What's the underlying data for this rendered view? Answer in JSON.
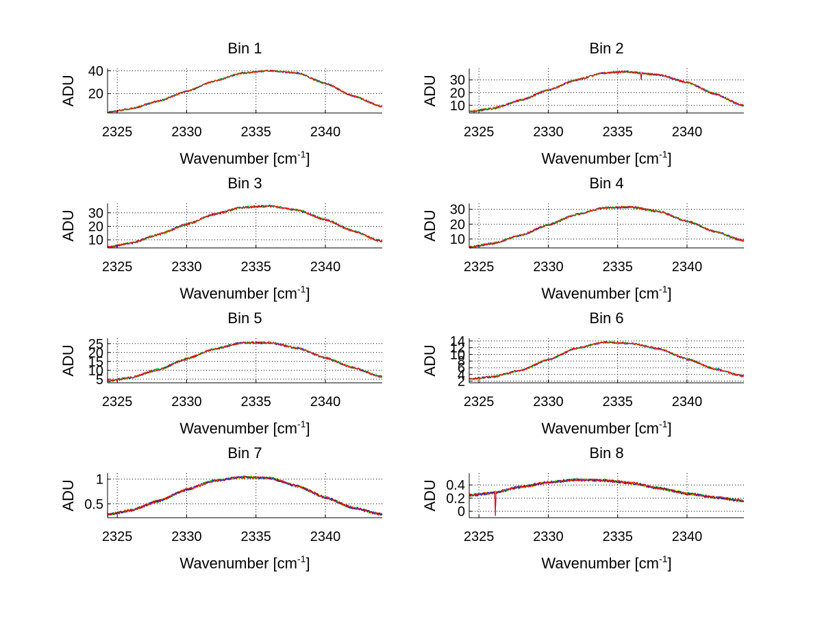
{
  "figure": {
    "background": "#ffffff",
    "panel_colors": [
      "#ff0000",
      "#0000cc",
      "#00cc00",
      "#00cccc",
      "#ffcc00"
    ]
  },
  "chart_data": [
    {
      "type": "line",
      "title": "Bin 1",
      "xlabel": "Wavenumber [cm",
      "xlabel_sup": "-1",
      "xlabel_end": "]",
      "ylabel": "ADU",
      "xlim": [
        2324.3,
        2344.1
      ],
      "ylim": [
        3,
        42
      ],
      "xticks": [
        2325,
        2330,
        2335,
        2340
      ],
      "yticks": [
        20,
        40
      ],
      "grid": true,
      "curve_points": [
        [
          2324.3,
          3.5
        ],
        [
          2326,
          6.8
        ],
        [
          2328,
          13.5
        ],
        [
          2330,
          22
        ],
        [
          2332,
          31
        ],
        [
          2334,
          38
        ],
        [
          2336,
          40
        ],
        [
          2338,
          38
        ],
        [
          2340,
          29
        ],
        [
          2342,
          18
        ],
        [
          2344,
          9
        ]
      ],
      "noise": 0.8
    },
    {
      "type": "line",
      "title": "Bin 2",
      "xlabel": "Wavenumber [cm",
      "xlabel_sup": "-1",
      "xlabel_end": "]",
      "ylabel": "ADU",
      "xlim": [
        2324.3,
        2344.1
      ],
      "ylim": [
        4,
        39
      ],
      "xticks": [
        2325,
        2330,
        2335,
        2340
      ],
      "yticks": [
        10,
        20,
        30
      ],
      "grid": true,
      "curve_points": [
        [
          2324.3,
          5
        ],
        [
          2326,
          7.5
        ],
        [
          2328,
          14
        ],
        [
          2330,
          22
        ],
        [
          2332,
          30
        ],
        [
          2334,
          35.5
        ],
        [
          2335.5,
          36.5
        ],
        [
          2338,
          34
        ],
        [
          2340,
          28
        ],
        [
          2342,
          19
        ],
        [
          2344,
          10
        ]
      ],
      "dips": [
        [
          2336.7,
          30
        ]
      ],
      "noise": 0.8
    },
    {
      "type": "line",
      "title": "Bin 3",
      "xlabel": "Wavenumber [cm",
      "xlabel_sup": "-1",
      "xlabel_end": "]",
      "ylabel": "ADU",
      "xlim": [
        2324.3,
        2344.1
      ],
      "ylim": [
        4,
        37
      ],
      "xticks": [
        2325,
        2330,
        2335,
        2340
      ],
      "yticks": [
        10,
        20,
        30
      ],
      "grid": true,
      "curve_points": [
        [
          2324.3,
          4.5
        ],
        [
          2326,
          7.5
        ],
        [
          2328,
          14
        ],
        [
          2330,
          21.5
        ],
        [
          2332,
          29
        ],
        [
          2334,
          34
        ],
        [
          2336,
          35
        ],
        [
          2338,
          32
        ],
        [
          2340,
          25
        ],
        [
          2342,
          16.5
        ],
        [
          2344,
          9
        ]
      ],
      "noise": 0.8
    },
    {
      "type": "line",
      "title": "Bin 4",
      "xlabel": "Wavenumber [cm",
      "xlabel_sup": "-1",
      "xlabel_end": "]",
      "ylabel": "ADU",
      "xlim": [
        2324.3,
        2344.1
      ],
      "ylim": [
        4,
        34
      ],
      "xticks": [
        2325,
        2330,
        2335,
        2340
      ],
      "yticks": [
        10,
        20,
        30
      ],
      "grid": true,
      "curve_points": [
        [
          2324.3,
          4.5
        ],
        [
          2326,
          7
        ],
        [
          2328,
          12.5
        ],
        [
          2330,
          19.5
        ],
        [
          2332,
          26.5
        ],
        [
          2334,
          31
        ],
        [
          2336,
          31.5
        ],
        [
          2338,
          28.5
        ],
        [
          2340,
          22
        ],
        [
          2342,
          15
        ],
        [
          2344,
          9
        ]
      ],
      "noise": 0.7
    },
    {
      "type": "line",
      "title": "Bin 5",
      "xlabel": "Wavenumber [cm",
      "xlabel_sup": "-1",
      "xlabel_end": "]",
      "ylabel": "ADU",
      "xlim": [
        2324.3,
        2344.1
      ],
      "ylim": [
        3,
        28
      ],
      "xticks": [
        2325,
        2330,
        2335,
        2340
      ],
      "yticks": [
        5,
        10,
        15,
        20,
        25
      ],
      "ytick_labels": [
        "5",
        "10",
        "15",
        "20",
        "25"
      ],
      "grid": true,
      "curve_points": [
        [
          2324.3,
          4
        ],
        [
          2326,
          6
        ],
        [
          2328,
          10.5
        ],
        [
          2330,
          16.5
        ],
        [
          2332,
          22
        ],
        [
          2334,
          25.5
        ],
        [
          2336,
          25.5
        ],
        [
          2338,
          22.5
        ],
        [
          2340,
          17
        ],
        [
          2342,
          11.5
        ],
        [
          2344,
          6.5
        ]
      ],
      "noise": 0.6
    },
    {
      "type": "line",
      "title": "Bin 6",
      "xlabel": "Wavenumber [cm",
      "xlabel_sup": "-1",
      "xlabel_end": "]",
      "ylabel": "ADU",
      "xlim": [
        2324.3,
        2344.1
      ],
      "ylim": [
        1.5,
        14.8
      ],
      "xticks": [
        2325,
        2330,
        2335,
        2340
      ],
      "yticks": [
        2,
        4,
        6,
        8,
        10,
        12,
        14
      ],
      "ytick_labels": [
        "2",
        "4",
        "6",
        "8",
        "10",
        "12",
        "14"
      ],
      "grid": true,
      "curve_points": [
        [
          2324.3,
          2.6
        ],
        [
          2326,
          3.3
        ],
        [
          2328,
          5.2
        ],
        [
          2330,
          8.4
        ],
        [
          2332,
          11.8
        ],
        [
          2334,
          13.6
        ],
        [
          2336,
          13.3
        ],
        [
          2338,
          11.6
        ],
        [
          2340,
          8.6
        ],
        [
          2342,
          5.6
        ],
        [
          2344,
          3.6
        ]
      ],
      "noise": 0.3
    },
    {
      "type": "line",
      "title": "Bin 7",
      "xlabel": "Wavenumber [cm",
      "xlabel_sup": "-1",
      "xlabel_end": "]",
      "ylabel": "ADU",
      "xlim": [
        2324.3,
        2344.1
      ],
      "ylim": [
        0.22,
        1.12
      ],
      "xticks": [
        2325,
        2330,
        2335,
        2340
      ],
      "yticks": [
        0.5,
        1
      ],
      "ytick_labels": [
        "0.5",
        "1"
      ],
      "grid": true,
      "curve_points": [
        [
          2324.3,
          0.28
        ],
        [
          2326,
          0.37
        ],
        [
          2328,
          0.56
        ],
        [
          2330,
          0.79
        ],
        [
          2332,
          0.97
        ],
        [
          2334,
          1.04
        ],
        [
          2336,
          1.02
        ],
        [
          2338,
          0.86
        ],
        [
          2340,
          0.63
        ],
        [
          2342,
          0.42
        ],
        [
          2344,
          0.29
        ]
      ],
      "noise": 0.025
    },
    {
      "type": "line",
      "title": "Bin 8",
      "xlabel": "Wavenumber [cm",
      "xlabel_sup": "-1",
      "xlabel_end": "]",
      "ylabel": "ADU",
      "xlim": [
        2324.3,
        2344.1
      ],
      "ylim": [
        -0.1,
        0.58
      ],
      "xticks": [
        2325,
        2330,
        2335,
        2340
      ],
      "yticks": [
        0,
        0.2,
        0.4
      ],
      "ytick_labels": [
        "0",
        "0.2",
        "0.4"
      ],
      "grid": true,
      "curve_points": [
        [
          2324.3,
          0.24
        ],
        [
          2326,
          0.28
        ],
        [
          2328,
          0.37
        ],
        [
          2330,
          0.44
        ],
        [
          2332,
          0.48
        ],
        [
          2334,
          0.47
        ],
        [
          2336,
          0.43
        ],
        [
          2338,
          0.35
        ],
        [
          2340,
          0.27
        ],
        [
          2342,
          0.21
        ],
        [
          2344,
          0.16
        ]
      ],
      "dips": [
        [
          2326.2,
          -0.07
        ]
      ],
      "noise": 0.02
    }
  ]
}
